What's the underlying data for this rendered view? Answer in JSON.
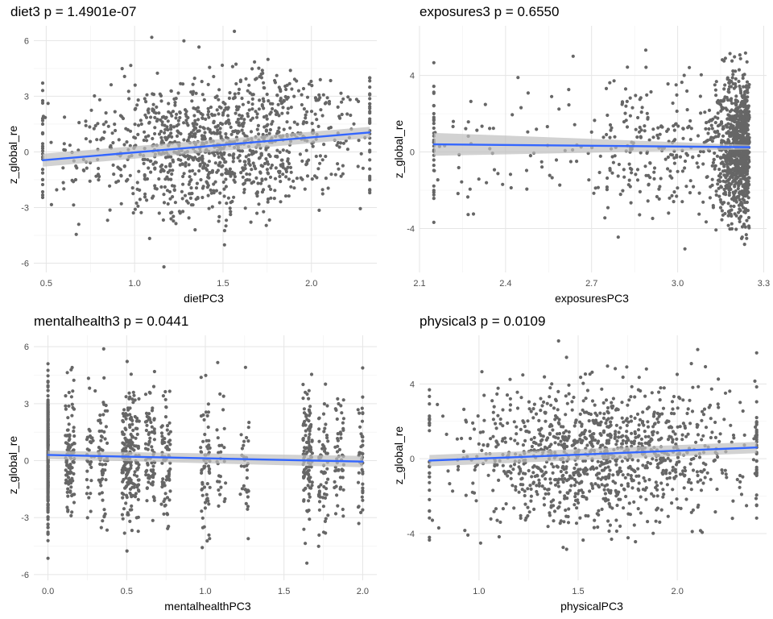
{
  "chart_data": [
    {
      "type": "scatter",
      "title": "diet3 p = 1.4901e-07",
      "xlabel": "dietPC3",
      "ylabel": "z_global_re",
      "xlim": [
        0.43,
        2.37
      ],
      "ylim": [
        -6.5,
        6.8
      ],
      "xticks": [
        0.5,
        1.0,
        1.5,
        2.0
      ],
      "xtick_labels": [
        "0.5",
        "1.0",
        "1.5",
        "2.0"
      ],
      "yticks": [
        -6,
        -3,
        0,
        3,
        6
      ],
      "ytick_labels": [
        "-6",
        "-3",
        "0",
        "3",
        "6"
      ],
      "grid": true,
      "point_color": "#666666",
      "point_summary": {
        "count": 1200,
        "x_range": [
          0.48,
          2.33
        ],
        "x_center": 1.45,
        "x_sd": 0.38,
        "y_sd": 1.8
      },
      "trend_line": {
        "x": [
          0.48,
          2.33
        ],
        "y": [
          -0.45,
          1.05
        ],
        "color": "#3366ff",
        "ci": [
          0.35,
          0.3
        ]
      },
      "ci_color": "#bfbfbf"
    },
    {
      "type": "scatter",
      "title": "exposures3 p = 0.6550",
      "xlabel": "exposuresPC3",
      "ylabel": "z_global_re",
      "xlim": [
        2.1,
        3.31
      ],
      "ylim": [
        -6.3,
        6.6
      ],
      "xticks": [
        2.1,
        2.4,
        2.7,
        3.0,
        3.3
      ],
      "xtick_labels": [
        "2.1",
        "2.4",
        "2.7",
        "3.0",
        "3.3"
      ],
      "yticks": [
        -4,
        0,
        4
      ],
      "ytick_labels": [
        "-4",
        "0",
        "4"
      ],
      "grid": true,
      "point_color": "#666666",
      "point_summary": {
        "count": 1200,
        "x_range": [
          2.15,
          3.25
        ],
        "cluster_x": 3.25,
        "y_sd": 1.8
      },
      "trend_line": {
        "x": [
          2.15,
          3.25
        ],
        "y": [
          0.4,
          0.25
        ],
        "color": "#3366ff",
        "ci": [
          0.6,
          0.12
        ]
      },
      "ci_color": "#bfbfbf"
    },
    {
      "type": "scatter",
      "title": "mentalhealth3 p = 0.0441",
      "xlabel": "mentalhealthPC3",
      "ylabel": "z_global_re",
      "xlim": [
        -0.09,
        2.09
      ],
      "ylim": [
        -6.3,
        6.6
      ],
      "xticks": [
        0.0,
        0.5,
        1.0,
        1.5,
        2.0
      ],
      "xtick_labels": [
        "0.0",
        "0.5",
        "1.0",
        "1.5",
        "2.0"
      ],
      "yticks": [
        -6,
        -3,
        0,
        3,
        6
      ],
      "ytick_labels": [
        "-6",
        "-3",
        "0",
        "3",
        "6"
      ],
      "grid": true,
      "point_color": "#666666",
      "point_summary": {
        "count": 1200,
        "x_range": [
          0.0,
          2.0
        ],
        "stripes_x": [
          0.0,
          0.14,
          0.27,
          0.35,
          0.5,
          0.55,
          0.65,
          0.75,
          1.0,
          1.1,
          1.25,
          1.65,
          1.75,
          1.85,
          2.0
        ]
      },
      "trend_line": {
        "x": [
          0.0,
          2.0
        ],
        "y": [
          0.3,
          -0.05
        ],
        "color": "#3366ff",
        "ci": [
          0.22,
          0.3
        ]
      },
      "ci_color": "#bfbfbf"
    },
    {
      "type": "scatter",
      "title": "physical3 p = 0.0109",
      "xlabel": "physicalPC3",
      "ylabel": "z_global_re",
      "xlim": [
        0.7,
        2.45
      ],
      "ylim": [
        -6.5,
        6.6
      ],
      "xticks": [
        1.0,
        1.5,
        2.0
      ],
      "xtick_labels": [
        "1.0",
        "1.5",
        "2.0"
      ],
      "yticks": [
        -4,
        0,
        4
      ],
      "ytick_labels": [
        "-4",
        "0",
        "4"
      ],
      "grid": true,
      "point_color": "#666666",
      "point_summary": {
        "count": 1200,
        "x_range": [
          0.75,
          2.4
        ],
        "x_center": 1.6,
        "x_sd": 0.35,
        "y_sd": 1.8
      },
      "trend_line": {
        "x": [
          0.75,
          2.4
        ],
        "y": [
          -0.1,
          0.6
        ],
        "color": "#3366ff",
        "ci": [
          0.3,
          0.3
        ]
      },
      "ci_color": "#bfbfbf"
    }
  ]
}
